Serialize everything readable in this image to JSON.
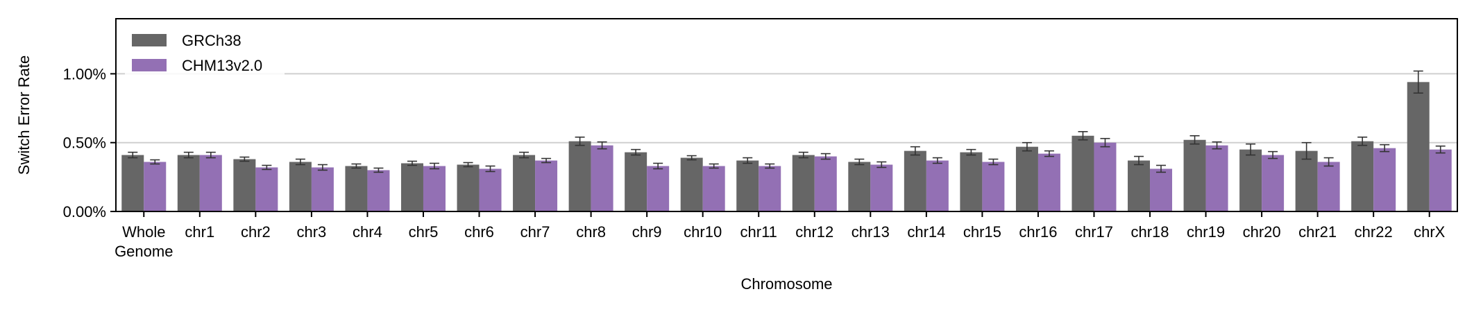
{
  "chart_data": {
    "type": "bar",
    "xlabel": "Chromosome",
    "ylabel": "Switch Error Rate",
    "ylim": [
      0,
      1.4
    ],
    "yticks": [
      {
        "value": 0.0,
        "label": "0.00%"
      },
      {
        "value": 0.5,
        "label": "0.50%"
      },
      {
        "value": 1.0,
        "label": "1.00%"
      }
    ],
    "grid": "horizontal at ticks",
    "legend_position": "top-left",
    "categories": [
      {
        "label": "Whole",
        "label2": "Genome"
      },
      {
        "label": "chr1",
        "label2": ""
      },
      {
        "label": "chr2",
        "label2": ""
      },
      {
        "label": "chr3",
        "label2": ""
      },
      {
        "label": "chr4",
        "label2": ""
      },
      {
        "label": "chr5",
        "label2": ""
      },
      {
        "label": "chr6",
        "label2": ""
      },
      {
        "label": "chr7",
        "label2": ""
      },
      {
        "label": "chr8",
        "label2": ""
      },
      {
        "label": "chr9",
        "label2": ""
      },
      {
        "label": "chr10",
        "label2": ""
      },
      {
        "label": "chr11",
        "label2": ""
      },
      {
        "label": "chr12",
        "label2": ""
      },
      {
        "label": "chr13",
        "label2": ""
      },
      {
        "label": "chr14",
        "label2": ""
      },
      {
        "label": "chr15",
        "label2": ""
      },
      {
        "label": "chr16",
        "label2": ""
      },
      {
        "label": "chr17",
        "label2": ""
      },
      {
        "label": "chr18",
        "label2": ""
      },
      {
        "label": "chr19",
        "label2": ""
      },
      {
        "label": "chr20",
        "label2": ""
      },
      {
        "label": "chr21",
        "label2": ""
      },
      {
        "label": "chr22",
        "label2": ""
      },
      {
        "label": "chrX",
        "label2": ""
      }
    ],
    "series": [
      {
        "name": "GRCh38",
        "color": "#666666",
        "values": [
          0.41,
          0.41,
          0.38,
          0.36,
          0.33,
          0.35,
          0.34,
          0.41,
          0.51,
          0.43,
          0.39,
          0.37,
          0.41,
          0.36,
          0.44,
          0.43,
          0.47,
          0.55,
          0.37,
          0.52,
          0.45,
          0.44,
          0.51,
          0.94
        ],
        "errors": [
          0.02,
          0.02,
          0.015,
          0.02,
          0.015,
          0.015,
          0.015,
          0.02,
          0.03,
          0.02,
          0.015,
          0.02,
          0.02,
          0.02,
          0.03,
          0.02,
          0.03,
          0.03,
          0.03,
          0.03,
          0.04,
          0.06,
          0.03,
          0.08
        ]
      },
      {
        "name": "CHM13v2.0",
        "color": "#9370b4",
        "values": [
          0.36,
          0.41,
          0.32,
          0.32,
          0.3,
          0.33,
          0.31,
          0.37,
          0.48,
          0.33,
          0.33,
          0.33,
          0.4,
          0.34,
          0.37,
          0.36,
          0.42,
          0.5,
          0.31,
          0.48,
          0.41,
          0.36,
          0.46,
          0.45
        ],
        "errors": [
          0.015,
          0.02,
          0.015,
          0.02,
          0.015,
          0.02,
          0.02,
          0.015,
          0.025,
          0.02,
          0.015,
          0.015,
          0.02,
          0.02,
          0.02,
          0.02,
          0.02,
          0.03,
          0.025,
          0.025,
          0.025,
          0.03,
          0.025,
          0.025
        ]
      }
    ]
  }
}
